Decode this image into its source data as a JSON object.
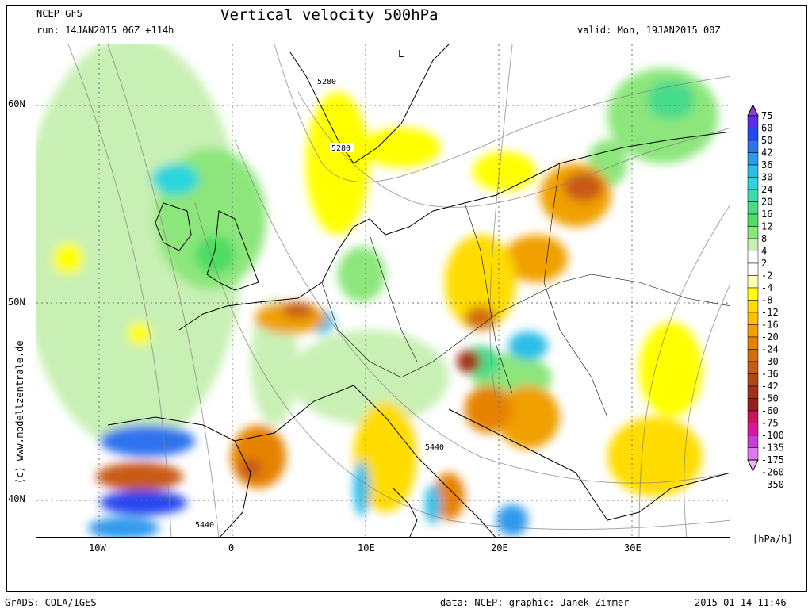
{
  "header": {
    "source": "NCEP GFS",
    "run": "run: 14JAN2015 06Z +114h",
    "title": "Vertical velocity 500hPa",
    "valid": "valid: Mon, 19JAN2015 00Z"
  },
  "axes": {
    "x_ticks": [
      "10W",
      "0",
      "10E",
      "20E",
      "30E"
    ],
    "y_ticks": [
      "60N",
      "50N",
      "40N"
    ]
  },
  "map": {
    "contour_labels": [
      "5280",
      "5280",
      "5440",
      "5440"
    ],
    "high_low_marker": "L"
  },
  "colorbar": {
    "labels": [
      "75",
      "60",
      "50",
      "42",
      "36",
      "30",
      "24",
      "20",
      "16",
      "12",
      "8",
      "4",
      "2",
      "-2",
      "-4",
      "-8",
      "-12",
      "-16",
      "-20",
      "-24",
      "-30",
      "-36",
      "-42",
      "-50",
      "-60",
      "-75",
      "-100",
      "-135",
      "-175",
      "-260",
      "-350"
    ],
    "colors": [
      "#8c3cdc",
      "#5a2de6",
      "#2846f0",
      "#2e72ee",
      "#2e9aec",
      "#29bde8",
      "#2ad6dc",
      "#3cdcaa",
      "#46dc8a",
      "#50dc64",
      "#8ce67c",
      "#c8f0b4",
      "#ffffff",
      "#ffffff",
      "#ffffb4",
      "#ffff00",
      "#ffdc00",
      "#ffc000",
      "#f0a000",
      "#e68200",
      "#d26e0a",
      "#c85a14",
      "#b44614",
      "#a03214",
      "#961e1e",
      "#c8145a",
      "#dc14a0",
      "#c83cdc",
      "#dc78f0",
      "#f0b4f8"
    ],
    "unit": "[hPa/h]"
  },
  "footer": {
    "left": "GrADS: COLA/IGES",
    "center": "data: NCEP; graphic: Janek Zimmer",
    "right": "2015-01-14-11:46"
  },
  "watermark": "(c) www.modellzentrale.de"
}
